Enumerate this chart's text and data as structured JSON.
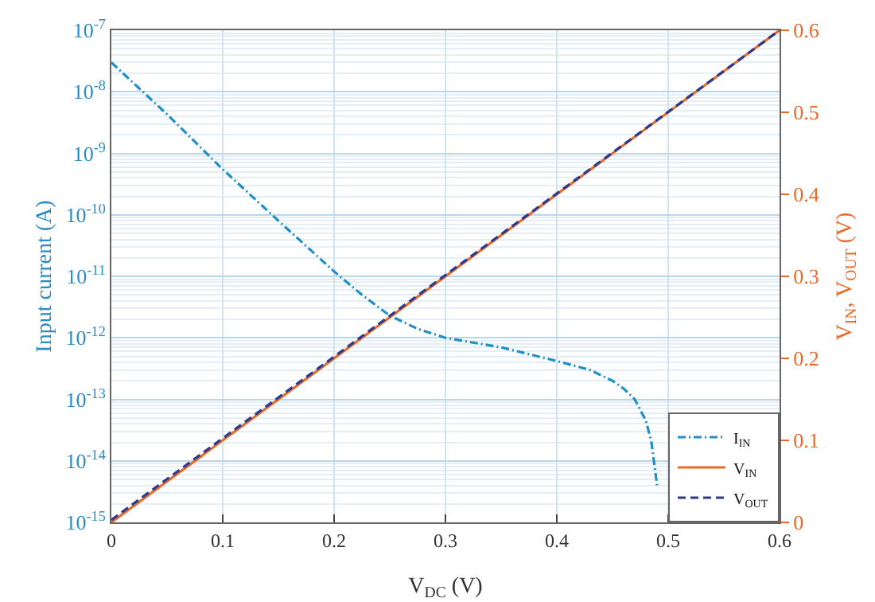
{
  "chart_data": {
    "type": "line",
    "xlabel": "V$_{DC}$ (V)",
    "ylabel": "Input current (A)",
    "y2label": "V$_{IN}$, V$_{OUT}$ (V)",
    "log": "y",
    "grid": true,
    "legend": "bottom right",
    "marker": "none",
    "xlim": [
      0,
      0.6
    ],
    "xticks": [
      0,
      0.1,
      0.2,
      0.3,
      0.4,
      0.5,
      0.6
    ],
    "ylim": [
      1e-15,
      1e-07
    ],
    "yticks": [
      {
        "value": 1e-15,
        "label": "10$^{-15}$"
      },
      {
        "value": 1e-14,
        "label": "10$^{-14}$"
      },
      {
        "value": 1e-13,
        "label": "10$^{-13}$"
      },
      {
        "value": 1e-12,
        "label": "10$^{-12}$"
      },
      {
        "value": 1e-11,
        "label": "10$^{-11}$"
      },
      {
        "value": 1e-10,
        "label": "10$^{-10}$"
      },
      {
        "value": 1e-09,
        "label": "10$^{-9}$"
      },
      {
        "value": 1e-08,
        "label": "10$^{-8}$"
      },
      {
        "value": 1e-07,
        "label": "10$^{-7}$"
      }
    ],
    "y2lim": [
      0,
      0.6
    ],
    "y2ticks": [
      0,
      0.1,
      0.2,
      0.3,
      0.4,
      0.5,
      0.6
    ],
    "series": [
      {
        "name": "I$_{IN}$",
        "color": "#1f8fc8",
        "line_style": "dashdot",
        "x": [
          0,
          0.05,
          0.1,
          0.15,
          0.2,
          0.225,
          0.25,
          0.275,
          0.3,
          0.35,
          0.4,
          0.43,
          0.45,
          0.46,
          0.47,
          0.48,
          0.485,
          0.49
        ],
        "values": [
          3e-08,
          4.3e-09,
          5.5e-10,
          8e-11,
          1.2e-11,
          5e-12,
          2.3e-12,
          1.4e-12,
          1e-12,
          7e-13,
          4.2e-13,
          3e-13,
          2e-13,
          1.5e-13,
          1e-13,
          4.5e-14,
          2e-14,
          4e-15
        ]
      },
      {
        "name": "V$_{IN}$",
        "color": "#e8692a",
        "line_style": "solid",
        "axis": "y2",
        "x": [
          0,
          0.6
        ],
        "values": [
          0,
          0.6
        ]
      },
      {
        "name": "V$_{OUT}$",
        "color": "#2b3a8c",
        "line_style": "dashed",
        "axis": "y2",
        "x": [
          0,
          0.6
        ],
        "values": [
          0.003,
          0.6
        ]
      }
    ]
  }
}
